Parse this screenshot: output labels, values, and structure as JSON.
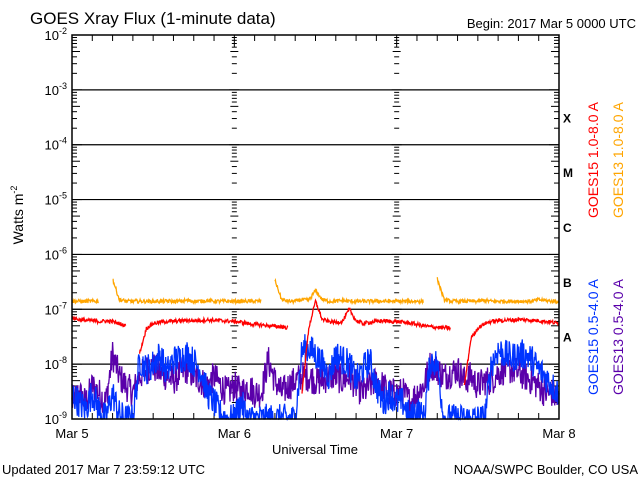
{
  "chart_data": {
    "type": "line",
    "title": "GOES Xray Flux (1-minute data)",
    "begin": "Begin:  2017 Mar 5 0000 UTC",
    "xlabel": "Universal Time",
    "ylabel": "Watts m",
    "ylabel_exp": "-2",
    "x_unit": "hours since 2017 Mar 5 0000 UTC",
    "xlim": [
      0,
      72
    ],
    "ylim": [
      1e-09,
      0.01
    ],
    "yscale": "log",
    "grid": "horizontal lines at each decade",
    "xticks": [
      {
        "x": 0,
        "label": "Mar 5"
      },
      {
        "x": 24,
        "label": "Mar 6"
      },
      {
        "x": 48,
        "label": "Mar 7"
      },
      {
        "x": 72,
        "label": "Mar 8"
      }
    ],
    "yticks": [
      {
        "exp": -2
      },
      {
        "exp": -3
      },
      {
        "exp": -4
      },
      {
        "exp": -5
      },
      {
        "exp": -6
      },
      {
        "exp": -7
      },
      {
        "exp": -8
      },
      {
        "exp": -9
      }
    ],
    "flare_classes": [
      {
        "label": "X",
        "exp": -3.5
      },
      {
        "label": "M",
        "exp": -4.5
      },
      {
        "label": "C",
        "exp": -5.5
      },
      {
        "label": "B",
        "exp": -6.5
      },
      {
        "label": "A",
        "exp": -7.5
      }
    ],
    "series": [
      {
        "name": "GOES15 1.0-8.0 A",
        "color": "#ff0000",
        "kind": "long",
        "values": [
          7e-08,
          6.5e-08,
          6.3e-08,
          6.2e-08,
          6e-08,
          6.1e-08,
          6e-08,
          5.5e-08,
          5e-08,
          null,
          1.6e-08,
          4.5e-08,
          5.5e-08,
          5.8e-08,
          6e-08,
          6e-08,
          6.2e-08,
          6.3e-08,
          6.2e-08,
          6.3e-08,
          6.4e-08,
          6.3e-08,
          6.2e-08,
          6.1e-08,
          6e-08,
          5.8e-08,
          5.5e-08,
          5.3e-08,
          5.2e-08,
          5e-08,
          4.9e-08,
          4.8e-08,
          4.6e-08,
          null,
          3e-09,
          4.5e-08,
          1.4e-07,
          6.5e-08,
          6e-08,
          5.8e-08,
          6e-08,
          1e-07,
          6.2e-08,
          5.5e-08,
          5.8e-08,
          6e-08,
          6.2e-08,
          6e-08,
          6e-08,
          5.8e-08,
          5.6e-08,
          5.3e-08,
          5e-08,
          4.8e-08,
          4.7e-08,
          4.6e-08,
          4.5e-08,
          null,
          4e-09,
          3e-08,
          4.5e-08,
          5.5e-08,
          6e-08,
          6.2e-08,
          6.3e-08,
          6.4e-08,
          6.5e-08,
          6.4e-08,
          6.3e-08,
          6.2e-08,
          6e-08,
          5.8e-08,
          5.5e-08
        ]
      },
      {
        "name": "GOES13 1.0-8.0 A",
        "color": "#ffa500",
        "kind": "long",
        "values": [
          1.4e-07,
          1.4e-07,
          1.4e-07,
          1.4e-07,
          1.4e-07,
          null,
          3.6e-07,
          1.5e-07,
          1.4e-07,
          1.4e-07,
          1.4e-07,
          1.4e-07,
          1.4e-07,
          1.4e-07,
          1.4e-07,
          1.4e-07,
          1.4e-07,
          1.45e-07,
          1.4e-07,
          1.4e-07,
          1.45e-07,
          1.4e-07,
          1.4e-07,
          1.4e-07,
          1.4e-07,
          1.4e-07,
          1.4e-07,
          1.4e-07,
          1.4e-07,
          null,
          3.4e-07,
          1.5e-07,
          1.4e-07,
          1.4e-07,
          1.5e-07,
          1.45e-07,
          2.2e-07,
          1.5e-07,
          1.4e-07,
          1.4e-07,
          1.45e-07,
          1.4e-07,
          1.4e-07,
          1.4e-07,
          1.4e-07,
          1.4e-07,
          1.4e-07,
          1.4e-07,
          1.4e-07,
          1.4e-07,
          1.4e-07,
          1.4e-07,
          1.4e-07,
          null,
          3.6e-07,
          1.5e-07,
          1.4e-07,
          1.4e-07,
          1.4e-07,
          1.4e-07,
          1.4e-07,
          1.45e-07,
          1.4e-07,
          1.4e-07,
          1.4e-07,
          1.4e-07,
          1.4e-07,
          1.4e-07,
          1.4e-07,
          1.5e-07,
          1.45e-07,
          1.4e-07,
          1.4e-07
        ]
      },
      {
        "name": "GOES15 0.5-4.0 A",
        "color": "#0033ff",
        "kind": "short",
        "values": [
          3e-09,
          2e-09,
          1.5e-09,
          3e-09,
          1.5e-09,
          1e-09,
          3e-09,
          1.2e-09,
          1e-09,
          1e-09,
          1.2e-08,
          8e-09,
          1e-08,
          1.5e-08,
          7e-09,
          1.2e-08,
          1.3e-08,
          1.5e-08,
          1.1e-08,
          8e-09,
          3e-09,
          2e-09,
          1.2e-09,
          1e-09,
          1e-09,
          2e-09,
          1e-09,
          1e-09,
          1e-09,
          1e-09,
          1e-09,
          1e-09,
          1e-09,
          1e-09,
          1.8e-08,
          2e-08,
          1.5e-08,
          1e-08,
          6e-09,
          1.5e-08,
          1.2e-08,
          1e-08,
          5e-09,
          8e-09,
          1.2e-08,
          4e-09,
          2e-09,
          3e-09,
          2e-09,
          2e-09,
          1e-09,
          1.5e-09,
          1e-09,
          1.2e-08,
          1e-08,
          1e-09,
          1e-09,
          1e-09,
          1e-09,
          1e-09,
          1e-09,
          1e-09,
          1e-08,
          1.8e-08,
          1.5e-08,
          1.3e-08,
          1.5e-08,
          1.5e-08,
          1.2e-08,
          8e-09,
          6e-09,
          4e-09,
          3e-09
        ]
      },
      {
        "name": "GOES13 0.5-4.0 A",
        "color": "#5a00aa",
        "kind": "short",
        "values": [
          2e-09,
          3e-09,
          2e-09,
          4e-09,
          3e-09,
          2e-09,
          1.5e-08,
          6e-09,
          4e-09,
          3e-09,
          6e-09,
          8e-09,
          9e-09,
          7e-09,
          6e-09,
          5e-09,
          7e-09,
          8e-09,
          6e-09,
          5e-09,
          4e-09,
          6e-09,
          4e-09,
          3e-09,
          4e-09,
          3e-09,
          4e-09,
          3e-09,
          3e-09,
          1.2e-08,
          5e-09,
          3e-09,
          4e-09,
          5e-09,
          6e-09,
          6e-09,
          5e-09,
          5e-09,
          6e-09,
          6e-09,
          5e-09,
          6e-09,
          4e-09,
          3e-09,
          4e-09,
          5e-09,
          4e-09,
          3e-09,
          3e-09,
          3e-09,
          2e-09,
          3e-09,
          4e-09,
          1e-08,
          8e-09,
          6e-09,
          7e-09,
          8e-09,
          5e-09,
          6e-09,
          4e-09,
          5e-09,
          5e-09,
          7e-09,
          8e-09,
          8e-09,
          7e-09,
          6e-09,
          5e-09,
          4e-09,
          3e-09,
          3e-09,
          2e-09
        ]
      }
    ]
  },
  "footer": {
    "updated": "Updated 2017 Mar  7 23:59:12 UTC",
    "source": "NOAA/SWPC Boulder, CO USA"
  }
}
